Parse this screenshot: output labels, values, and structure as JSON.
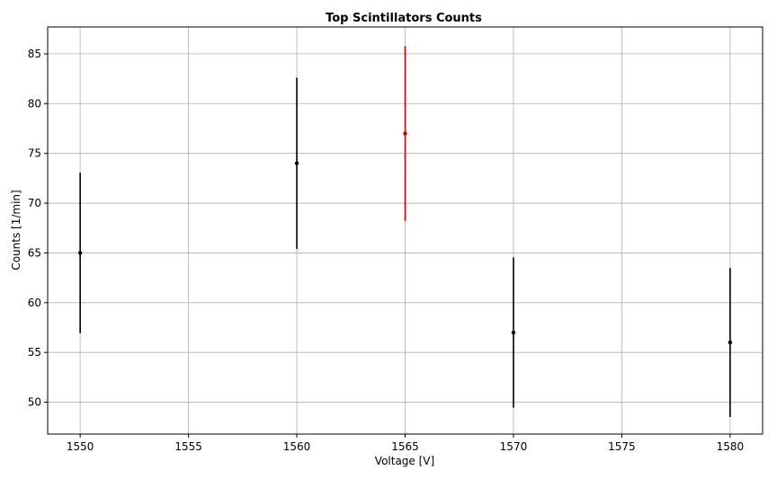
{
  "chart_data": {
    "type": "scatter",
    "title": "Top Scintillators Counts",
    "xlabel": "Voltage [V]",
    "ylabel": "Counts [1/min]",
    "xlim": [
      1548.5,
      1581.5
    ],
    "ylim": [
      46.8,
      87.7
    ],
    "xticks": [
      1550,
      1555,
      1560,
      1565,
      1570,
      1575,
      1580
    ],
    "yticks": [
      50,
      55,
      60,
      65,
      70,
      75,
      80,
      85
    ],
    "grid": true,
    "legend": "none",
    "points": [
      {
        "x": 1550,
        "y": 65,
        "err": 8.06,
        "color": "#000000"
      },
      {
        "x": 1560,
        "y": 74,
        "err": 8.6,
        "color": "#000000"
      },
      {
        "x": 1565,
        "y": 77,
        "err": 8.77,
        "color": "#cc0000"
      },
      {
        "x": 1570,
        "y": 57,
        "err": 7.55,
        "color": "#000000"
      },
      {
        "x": 1580,
        "y": 56,
        "err": 7.48,
        "color": "#000000"
      }
    ],
    "colors": {
      "default": "#000000",
      "highlight": "#cc0000",
      "grid": "#b0b0b0"
    }
  }
}
